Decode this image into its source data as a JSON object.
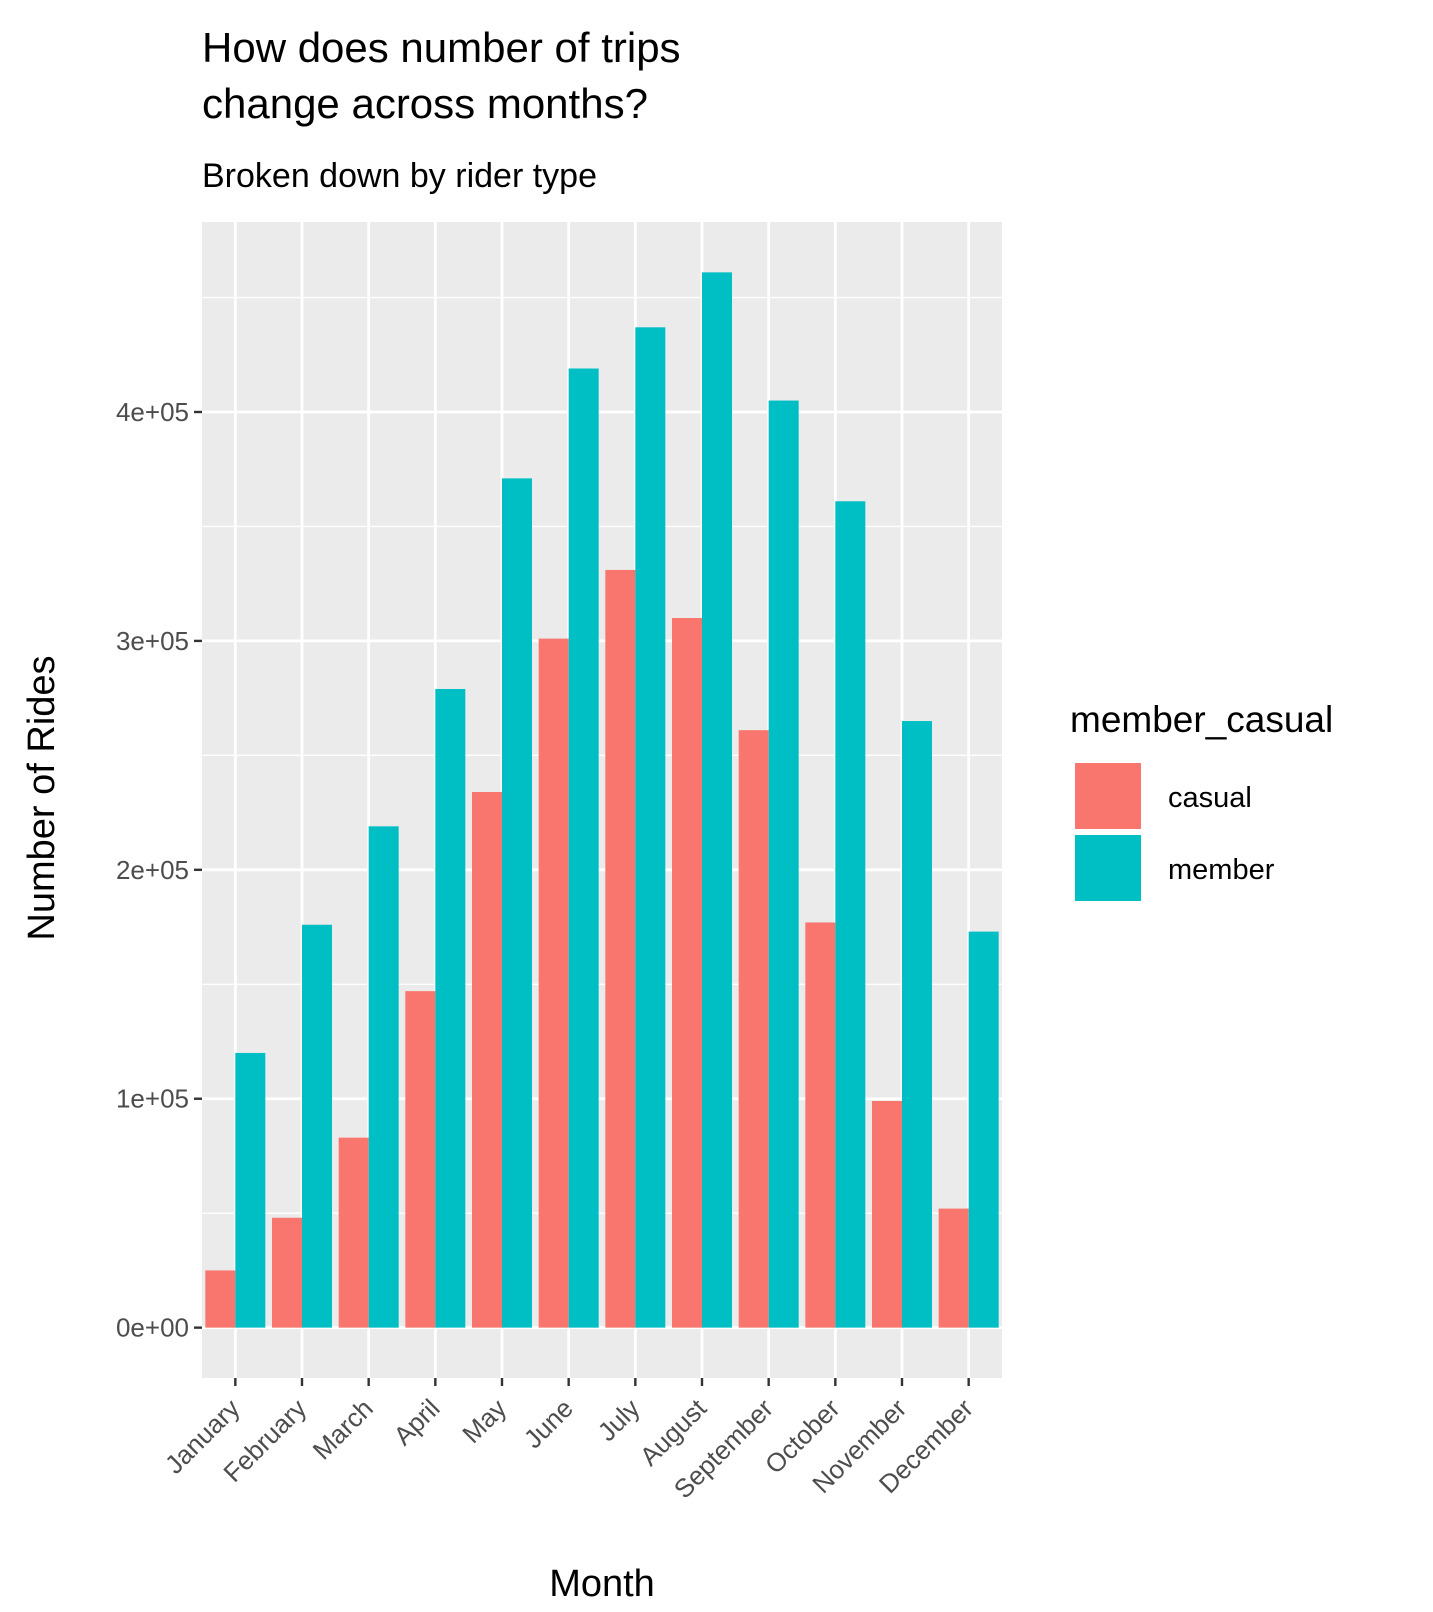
{
  "chart_data": {
    "type": "bar",
    "title": "How does number of trips change across months?",
    "title_lines": [
      "How does number of trips",
      "change across months?"
    ],
    "subtitle": "Broken down by rider type",
    "xlabel": "Month",
    "ylabel": "Number of Rides",
    "categories": [
      "January",
      "February",
      "March",
      "April",
      "May",
      "June",
      "July",
      "August",
      "September",
      "October",
      "November",
      "December"
    ],
    "series": [
      {
        "name": "casual",
        "color": "#F8766D",
        "values": [
          25000,
          48000,
          83000,
          147000,
          234000,
          301000,
          331000,
          310000,
          261000,
          177000,
          99000,
          52000
        ]
      },
      {
        "name": "member",
        "color": "#00BFC4",
        "values": [
          120000,
          176000,
          219000,
          279000,
          371000,
          419000,
          437000,
          461000,
          405000,
          361000,
          265000,
          173000
        ]
      }
    ],
    "y_ticks": [
      0,
      100000,
      200000,
      300000,
      400000
    ],
    "y_tick_labels": [
      "0e+00",
      "1e+05",
      "2e+05",
      "3e+05",
      "4e+05"
    ],
    "ylim": [
      -22000,
      483000
    ],
    "legend": {
      "title": "member_casual",
      "position": "right"
    },
    "grid": true
  }
}
